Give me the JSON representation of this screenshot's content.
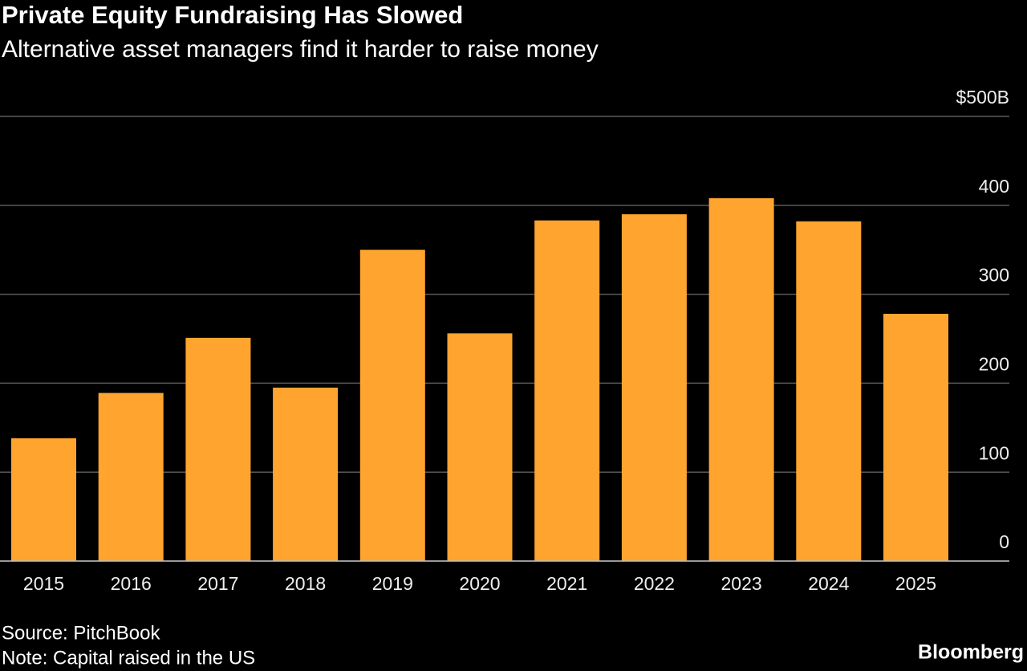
{
  "chart_data": {
    "type": "bar",
    "title": "Private Equity Fundraising Has Slowed",
    "subtitle": "Alternative asset managers find it harder to raise money",
    "categories": [
      "2015",
      "2016",
      "2017",
      "2018",
      "2019",
      "2020",
      "2021",
      "2022",
      "2023",
      "2024",
      "2025"
    ],
    "values": [
      138,
      189,
      251,
      195,
      350,
      256,
      383,
      390,
      408,
      382,
      278
    ],
    "color": "#ffa42e",
    "ylim": [
      0,
      500
    ],
    "yticks": [
      0,
      100,
      200,
      300,
      400,
      {
        "value": 500,
        "label": "$500B"
      }
    ],
    "grid": true,
    "source": "Source: PitchBook",
    "note": "Note: Capital raised in the US",
    "brand": "Bloomberg"
  }
}
